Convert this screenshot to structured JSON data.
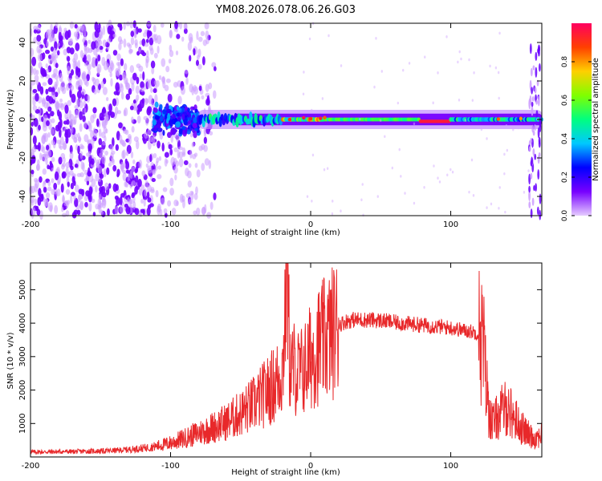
{
  "title": "YM08.2026.078.06.26.G03",
  "chart_data": [
    {
      "type": "heatmap",
      "xlabel": "Height of straight line (km)",
      "ylabel": "Frequency (Hz)",
      "xlim": [
        -200,
        165
      ],
      "ylim": [
        -50,
        50
      ],
      "xticks": [
        -200,
        -100,
        0,
        100
      ],
      "yticks": [
        -40,
        -20,
        0,
        20,
        40
      ],
      "colorbar": {
        "label": "Normalized spectral amplitude",
        "range": [
          0.0,
          1.0
        ],
        "ticks": [
          "0.0",
          "0.2",
          "0.4",
          "0.6",
          "0.8"
        ],
        "tick_values": [
          0.0,
          0.2,
          0.4,
          0.6,
          0.8
        ],
        "colors": [
          "#e6ccff",
          "#7700ff",
          "#0000ff",
          "#00c8ff",
          "#00ff80",
          "#80ff00",
          "#ffd000",
          "#ff4000",
          "#ff0060"
        ]
      },
      "features": [
        {
          "name": "noise-region",
          "x": [
            -200,
            -78
          ],
          "freq": [
            -50,
            50
          ],
          "amplitude": 0.12
        },
        {
          "name": "onset-cluster",
          "x": [
            -112,
            -80
          ],
          "freq": [
            -8,
            8
          ],
          "amplitude": 0.3
        },
        {
          "name": "carrier-band",
          "x": [
            -80,
            165
          ],
          "freq_center": 0,
          "amplitude_peak": 0.95
        },
        {
          "name": "strong-segment",
          "x": [
            80,
            98
          ],
          "freq_center": -1,
          "amplitude": 0.95
        }
      ]
    },
    {
      "type": "line",
      "xlabel": "Height of straight line (km)",
      "ylabel": "SNR (10 * v/v)",
      "xlim": [
        -200,
        165
      ],
      "ylim": [
        0,
        5800
      ],
      "xticks": [
        -200,
        -100,
        0,
        100
      ],
      "yticks": [
        1000,
        2000,
        3000,
        4000,
        5000
      ],
      "color": "#e8282a",
      "series": [
        {
          "name": "SNR",
          "x": [
            -200,
            -190,
            -180,
            -170,
            -160,
            -150,
            -140,
            -130,
            -120,
            -110,
            -100,
            -90,
            -80,
            -70,
            -60,
            -50,
            -40,
            -30,
            -25,
            -20,
            -17,
            -15,
            -14,
            -12,
            -10,
            -5,
            0,
            5,
            10,
            15,
            20,
            25,
            30,
            40,
            50,
            60,
            70,
            80,
            90,
            100,
            110,
            115,
            120,
            123,
            125,
            127,
            130,
            135,
            140,
            145,
            150,
            155,
            160,
            165
          ],
          "y": [
            150,
            150,
            160,
            160,
            170,
            175,
            190,
            220,
            260,
            320,
            420,
            560,
            720,
            880,
            1050,
            1300,
            1600,
            2000,
            2200,
            2600,
            5800,
            3000,
            2600,
            2700,
            2500,
            2600,
            3000,
            3300,
            3500,
            3700,
            3950,
            4050,
            4100,
            4100,
            4080,
            4020,
            3980,
            3940,
            3900,
            3860,
            3780,
            3750,
            3680,
            3500,
            2400,
            1400,
            1000,
            1300,
            1500,
            1200,
            900,
            700,
            550,
            700
          ]
        }
      ]
    }
  ]
}
